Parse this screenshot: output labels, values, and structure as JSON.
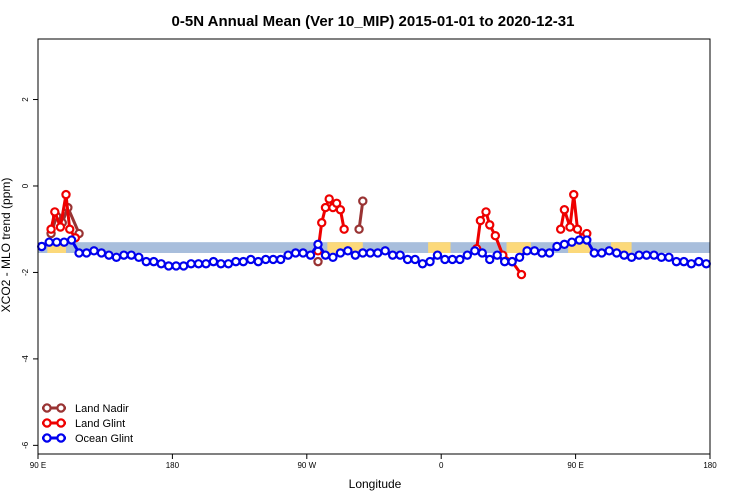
{
  "chart_data": {
    "type": "line",
    "title": "0-5N Annual Mean (Ver 10_MIP)   2015-01-01 to 2020-12-31",
    "xlabel": "Longitude",
    "ylabel": "XCO2 - MLO trend (ppm)",
    "xlim": [
      90,
      450
    ],
    "ylim": [
      -6.2,
      3.4
    ],
    "x_ticks": [
      {
        "value": 90,
        "label": "90 E"
      },
      {
        "value": 162,
        "label": "180"
      },
      {
        "value": 234,
        "label": "90 W"
      },
      {
        "value": 306,
        "label": "0"
      },
      {
        "value": 378,
        "label": "90 E"
      },
      {
        "value": 450,
        "label": "180"
      }
    ],
    "y_ticks": [
      {
        "value": -6,
        "label": "-6"
      },
      {
        "value": -4,
        "label": "-4"
      },
      {
        "value": -2,
        "label": "-2"
      },
      {
        "value": 0,
        "label": "0"
      },
      {
        "value": 2,
        "label": "2"
      }
    ],
    "band": {
      "low": -1.55,
      "high": -1.3,
      "color": "#a8bedc",
      "highlight_color": "#fcd97a",
      "highlight_ranges": [
        [
          95,
          105
        ],
        [
          245,
          264
        ],
        [
          299,
          311
        ],
        [
          341,
          354
        ],
        [
          374,
          386
        ],
        [
          397,
          408
        ]
      ]
    },
    "legend": {
      "position": "bottom-left"
    },
    "series": [
      {
        "name": "Land Nadir",
        "color": "#993333",
        "x": [
          97,
          100,
          103,
          106,
          112,
          240,
          262,
          264
        ],
        "y": [
          -1.1,
          -0.7,
          -0.85,
          -0.5,
          -1.1,
          -1.75,
          -1.0,
          -0.35
        ],
        "segments": [
          [
            0,
            4
          ],
          [
            5,
            5
          ],
          [
            6,
            7
          ]
        ]
      },
      {
        "name": "Land Glint",
        "color": "#ee0000",
        "x": [
          97,
          99,
          102,
          105,
          107,
          110,
          240,
          242,
          244,
          246,
          248,
          250,
          252,
          254,
          325,
          327,
          330,
          332,
          335,
          339,
          344,
          349,
          370,
          372,
          375,
          377,
          379,
          382,
          384
        ],
        "y": [
          -1.0,
          -0.6,
          -0.95,
          -0.2,
          -1.0,
          -1.2,
          -1.5,
          -0.85,
          -0.5,
          -0.3,
          -0.5,
          -0.4,
          -0.55,
          -1.0,
          -1.45,
          -0.8,
          -0.6,
          -0.9,
          -1.15,
          -1.6,
          -1.75,
          -2.05,
          -1.0,
          -0.55,
          -0.95,
          -0.2,
          -1.0,
          -1.2,
          -1.1
        ],
        "segments": [
          [
            0,
            5
          ],
          [
            6,
            13
          ],
          [
            14,
            21
          ],
          [
            22,
            28
          ]
        ]
      },
      {
        "name": "Ocean Glint",
        "color": "#0000ee",
        "x": [
          92,
          96,
          100,
          104,
          108,
          112,
          116,
          120,
          124,
          128,
          132,
          136,
          140,
          144,
          148,
          152,
          156,
          160,
          164,
          168,
          172,
          176,
          180,
          184,
          188,
          192,
          196,
          200,
          204,
          208,
          212,
          216,
          220,
          224,
          228,
          232,
          236,
          240,
          244,
          248,
          252,
          256,
          260,
          264,
          268,
          272,
          276,
          280,
          284,
          288,
          292,
          296,
          300,
          304,
          308,
          312,
          316,
          320,
          324,
          328,
          332,
          336,
          340,
          344,
          348,
          352,
          356,
          360,
          364,
          368,
          372,
          376,
          380,
          384,
          388,
          392,
          396,
          400,
          404,
          408,
          412,
          416,
          420,
          424,
          428,
          432,
          436,
          440,
          444,
          448
        ],
        "y": [
          -1.4,
          -1.3,
          -1.3,
          -1.3,
          -1.25,
          -1.55,
          -1.55,
          -1.5,
          -1.55,
          -1.6,
          -1.65,
          -1.6,
          -1.6,
          -1.65,
          -1.75,
          -1.75,
          -1.8,
          -1.85,
          -1.85,
          -1.85,
          -1.8,
          -1.8,
          -1.8,
          -1.75,
          -1.8,
          -1.8,
          -1.75,
          -1.75,
          -1.7,
          -1.75,
          -1.7,
          -1.7,
          -1.7,
          -1.6,
          -1.55,
          -1.55,
          -1.6,
          -1.35,
          -1.6,
          -1.65,
          -1.55,
          -1.5,
          -1.6,
          -1.55,
          -1.55,
          -1.55,
          -1.5,
          -1.6,
          -1.6,
          -1.7,
          -1.7,
          -1.8,
          -1.75,
          -1.6,
          -1.7,
          -1.7,
          -1.7,
          -1.6,
          -1.5,
          -1.55,
          -1.7,
          -1.6,
          -1.75,
          -1.75,
          -1.65,
          -1.5,
          -1.5,
          -1.55,
          -1.55,
          -1.4,
          -1.35,
          -1.3,
          -1.25,
          -1.25,
          -1.55,
          -1.55,
          -1.5,
          -1.55,
          -1.6,
          -1.65,
          -1.6,
          -1.6,
          -1.6,
          -1.65,
          -1.65,
          -1.75,
          -1.75,
          -1.8,
          -1.75,
          -1.8
        ],
        "segments": [
          [
            0,
            89
          ]
        ]
      }
    ]
  }
}
